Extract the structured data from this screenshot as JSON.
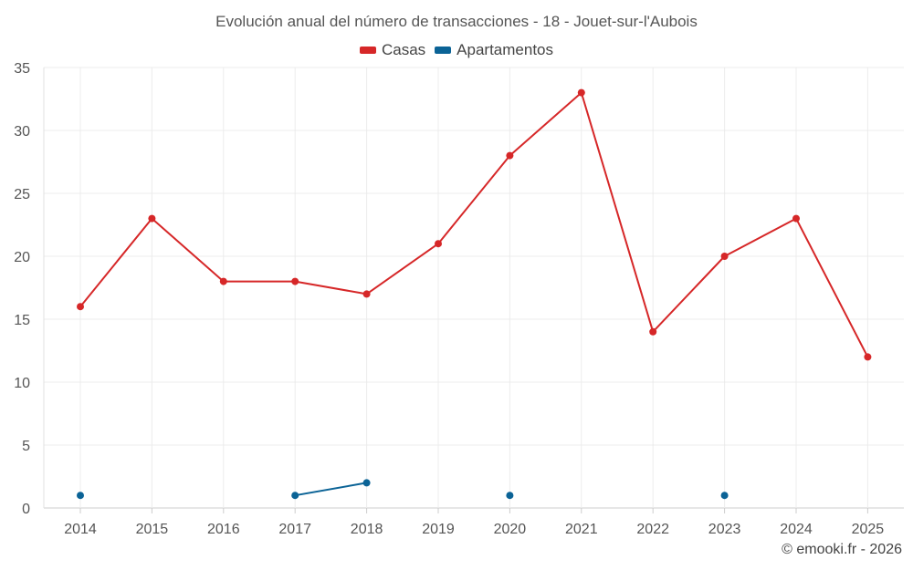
{
  "chart_data": {
    "type": "line",
    "title": "Evolución anual del número de transacciones - 18 - Jouet-sur-l'Aubois",
    "categories": [
      "2014",
      "2015",
      "2016",
      "2017",
      "2018",
      "2019",
      "2020",
      "2021",
      "2022",
      "2023",
      "2024",
      "2025"
    ],
    "series": [
      {
        "name": "Casas",
        "color": "#d62728",
        "values": [
          16,
          23,
          18,
          18,
          17,
          21,
          28,
          33,
          14,
          20,
          23,
          12
        ]
      },
      {
        "name": "Apartamentos",
        "color": "#0b6396",
        "values": [
          1,
          null,
          null,
          1,
          2,
          null,
          1,
          null,
          null,
          1,
          null,
          null
        ]
      }
    ],
    "yticks": [
      "0",
      "5",
      "10",
      "15",
      "20",
      "25",
      "30",
      "35"
    ],
    "ylim": [
      0,
      35
    ],
    "grid": true,
    "legend_position": "top-center"
  },
  "footer": {
    "credit": "© emooki.fr - 2026"
  }
}
